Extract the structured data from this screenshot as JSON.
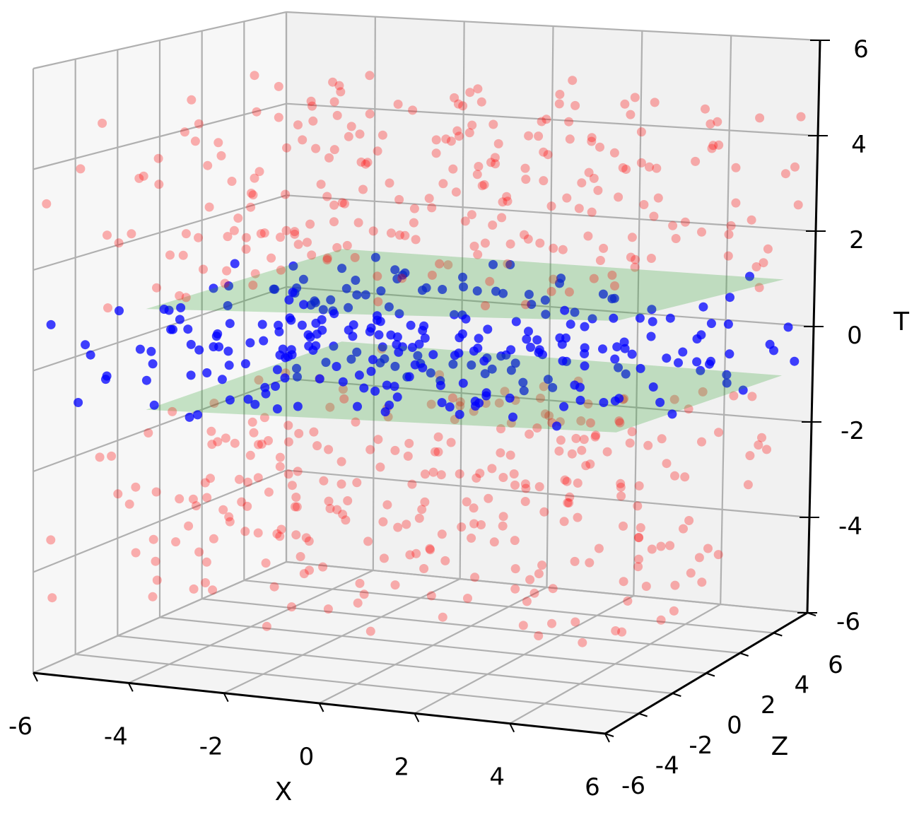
{
  "chart_data": {
    "type": "scatter",
    "projection": "3d",
    "title": "",
    "xlabel": "X",
    "ylabel": "Z",
    "zlabel": "T",
    "xlim": [
      -6,
      6
    ],
    "ylim": [
      -6,
      6
    ],
    "zlim": [
      -6,
      6
    ],
    "xticks": [
      "-6",
      "-4",
      "-2",
      "0",
      "2",
      "4",
      "6"
    ],
    "yticks": [
      "-6",
      "-4",
      "-2",
      "0",
      "2",
      "4",
      "6"
    ],
    "zticks": [
      "-6",
      "-4",
      "-2",
      "0",
      "2",
      "4",
      "6"
    ],
    "grid": true,
    "planes": [
      {
        "t": 1,
        "color": "#2ca02c",
        "opacity": 0.25
      },
      {
        "t": -1,
        "color": "#2ca02c",
        "opacity": 0.25
      }
    ],
    "series": [
      {
        "color": "#ff0000",
        "opacity": 0.3,
        "t_band": "|T| > 1",
        "count": 520
      },
      {
        "color": "#0000ff",
        "opacity": 0.75,
        "t_band": "|T| < 1",
        "count": 280
      }
    ]
  }
}
